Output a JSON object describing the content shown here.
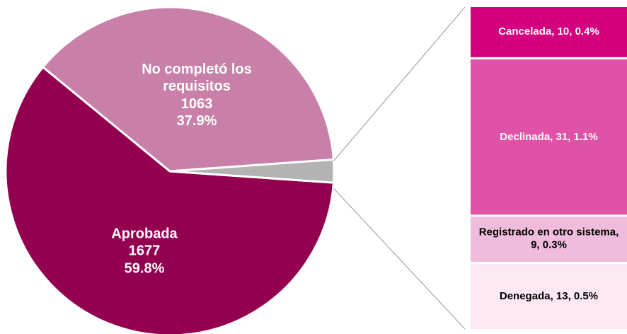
{
  "chart_data": [
    {
      "type": "pie",
      "categories": [
        "Aprobada",
        "No completó los requisitos",
        null
      ],
      "values": [
        1677,
        1063,
        63
      ],
      "percentages": [
        59.8,
        37.9,
        2.2
      ],
      "percentage_labels": [
        "59.8%",
        "37.9%",
        null
      ],
      "colors": [
        "#940050",
        "#c880a8",
        "#b3b3b3"
      ]
    },
    {
      "type": "stacked_bar",
      "categories": [
        "Cancelada",
        "Declinada",
        "Registrado en otro sistema",
        "Denegada"
      ],
      "values": [
        10,
        31,
        9,
        13
      ],
      "percentages": [
        0.4,
        1.1,
        0.3,
        0.5
      ],
      "value_labels": [
        "Cancelada, 10, 0.4%",
        "Declinada, 31, 1.1%",
        "Registrado en otro sistema, 9, 0.3%",
        "Denegada, 13, 0.5%"
      ],
      "colors": [
        "#d4007e",
        "#e052a8",
        "#f0bcdc",
        "#fbe8f2"
      ]
    }
  ]
}
